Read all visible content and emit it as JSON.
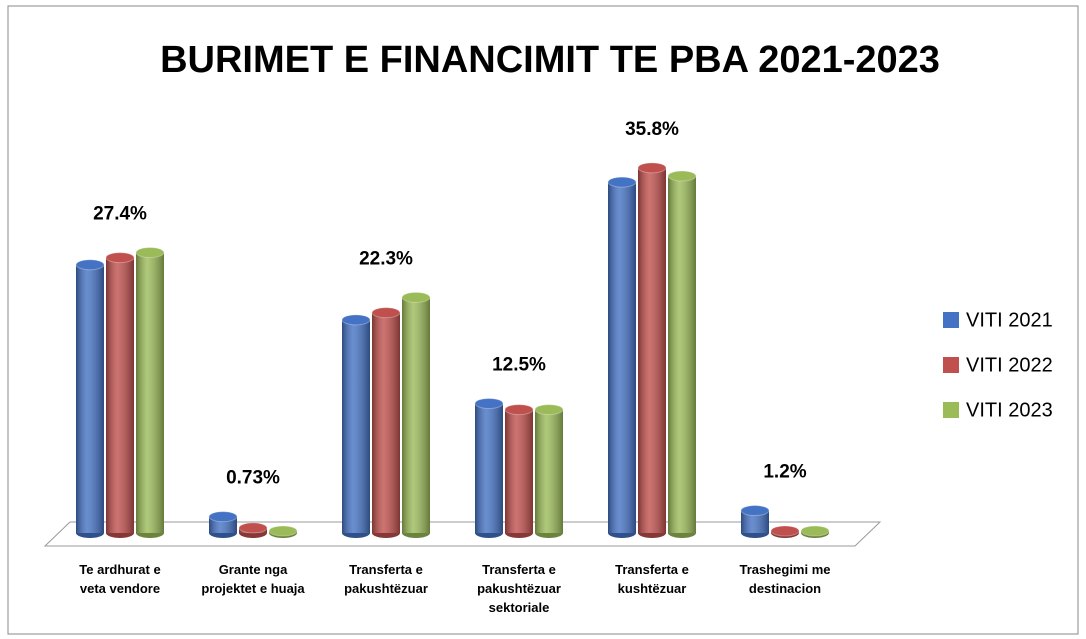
{
  "chart_data": {
    "type": "bar3d",
    "title": "BURIMET E FINANCIMIT TE PBA 2021-2023",
    "categories": [
      "Te ardhurat  e veta vendore",
      "Grante nga projektet e huaja",
      "Transferta e pakushtëzuar",
      "Transferta e pakushtëzuar sektoriale",
      "Transferta e kushtëzuar",
      "Trashegimi me destinacion"
    ],
    "series": [
      {
        "name": "VITI 2021",
        "color": "#4472c4",
        "values": [
          26.3,
          1.6,
          20.9,
          12.7,
          34.4,
          2.2
        ]
      },
      {
        "name": "VITI 2022",
        "color": "#c0504d",
        "values": [
          27.0,
          0.5,
          21.6,
          12.1,
          35.8,
          0.2
        ]
      },
      {
        "name": "VITI 2023",
        "color": "#9bbb59",
        "values": [
          27.5,
          0.2,
          23.1,
          12.1,
          35.0,
          0.2
        ]
      }
    ],
    "group_labels": [
      "27.4%",
      "0.73%",
      "22.3%",
      "12.5%",
      "35.8%",
      "1.2%"
    ],
    "legend": "right"
  }
}
